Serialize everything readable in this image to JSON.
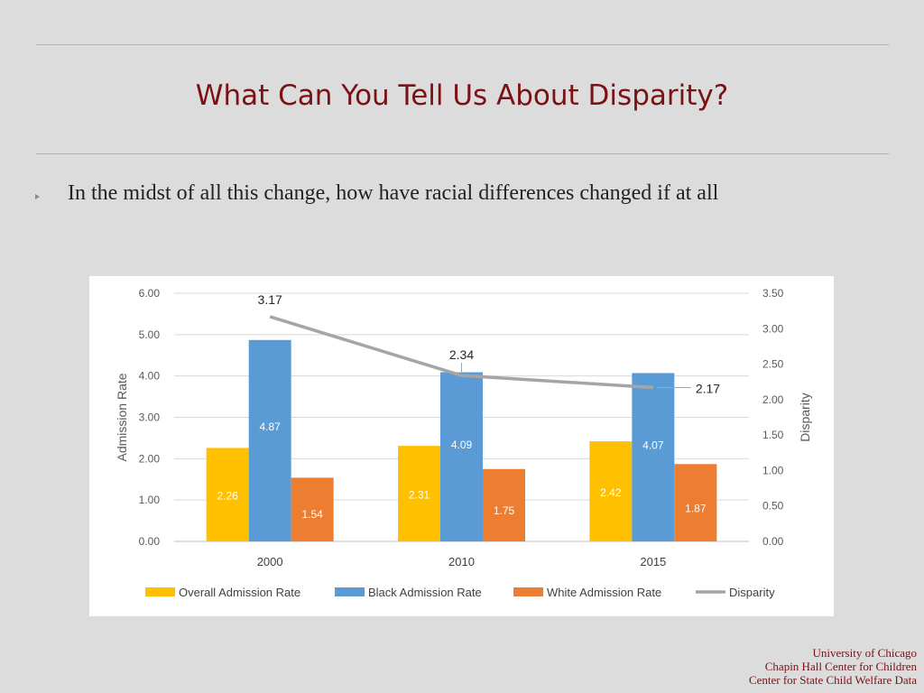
{
  "slide": {
    "title": "What Can You Tell Us About Disparity?",
    "bullet": "In the midst of all this change, how have racial differences changed if at all"
  },
  "footer": {
    "line1": "University of Chicago",
    "line2": "Chapin Hall Center for Children",
    "line3": "Center for State Child Welfare Data"
  },
  "colors": {
    "title": "#7b1114",
    "overall": "#ffc000",
    "black": "#5b9bd5",
    "white": "#ed7d31",
    "disparity": "#a5a5a5"
  },
  "chart_data": {
    "type": "bar",
    "categories": [
      "2000",
      "2010",
      "2015"
    ],
    "series": [
      {
        "name": "Overall Admission Rate",
        "type": "bar",
        "axis": "left",
        "values": [
          2.26,
          2.31,
          2.42
        ],
        "labels": [
          "2.26",
          "2.31",
          "2.42"
        ]
      },
      {
        "name": "Black Admission Rate",
        "type": "bar",
        "axis": "left",
        "values": [
          4.87,
          4.09,
          4.07
        ],
        "labels": [
          "4.87",
          "4.09",
          "4.07"
        ]
      },
      {
        "name": "White Admission Rate",
        "type": "bar",
        "axis": "left",
        "values": [
          1.54,
          1.75,
          1.87
        ],
        "labels": [
          "1.54",
          "1.75",
          "1.87"
        ]
      },
      {
        "name": "Disparity",
        "type": "line",
        "axis": "right",
        "values": [
          3.17,
          2.34,
          2.17
        ],
        "labels": [
          "3.17",
          "2.34",
          "2.17"
        ]
      }
    ],
    "ylabel": "Admission Rate",
    "y2label": "Disparity",
    "ylim": [
      0,
      6
    ],
    "y2lim": [
      0,
      3.5
    ],
    "yticks": [
      "6.00",
      "5.00",
      "4.00",
      "3.00",
      "2.00",
      "1.00",
      "0.00"
    ],
    "y2ticks": [
      "3.50",
      "3.00",
      "2.50",
      "2.00",
      "1.50",
      "1.00",
      "0.50",
      "0.00"
    ],
    "legend_position": "bottom",
    "grid": true
  }
}
